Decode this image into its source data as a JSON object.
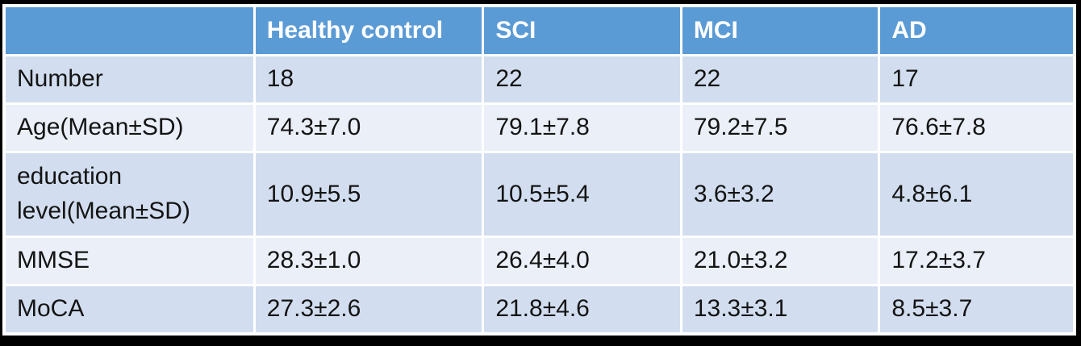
{
  "chart_data": {
    "type": "table",
    "columns": [
      "",
      "Healthy control",
      "SCI",
      "MCI",
      "AD"
    ],
    "rows": [
      {
        "label": "Number",
        "values": [
          "18",
          "22",
          "22",
          "17"
        ]
      },
      {
        "label": "Age(Mean±SD)",
        "values": [
          "74.3±7.0",
          "79.1±7.8",
          "79.2±7.5",
          "76.6±7.8"
        ]
      },
      {
        "label": "education level(Mean±SD)",
        "values": [
          "10.9±5.5",
          "10.5±5.4",
          "3.6±3.2",
          "4.8±6.1"
        ]
      },
      {
        "label": "MMSE",
        "values": [
          "28.3±1.0",
          "26.4±4.0",
          "21.0±3.2",
          "17.2±3.7"
        ]
      },
      {
        "label": "MoCA",
        "values": [
          "27.3±2.6",
          "21.8±4.6",
          "13.3±3.1",
          "8.5±3.7"
        ]
      }
    ],
    "legend_position": "none",
    "grid": "white cell separators"
  },
  "colors": {
    "header_fill": "#5B9BD5",
    "header_text": "#FFFFFF",
    "band_dark": "#D2DEEF",
    "band_light": "#EAEFF8",
    "separator": "#FFFFFF",
    "outer_frame": "#000000",
    "body_text": "#141414"
  }
}
